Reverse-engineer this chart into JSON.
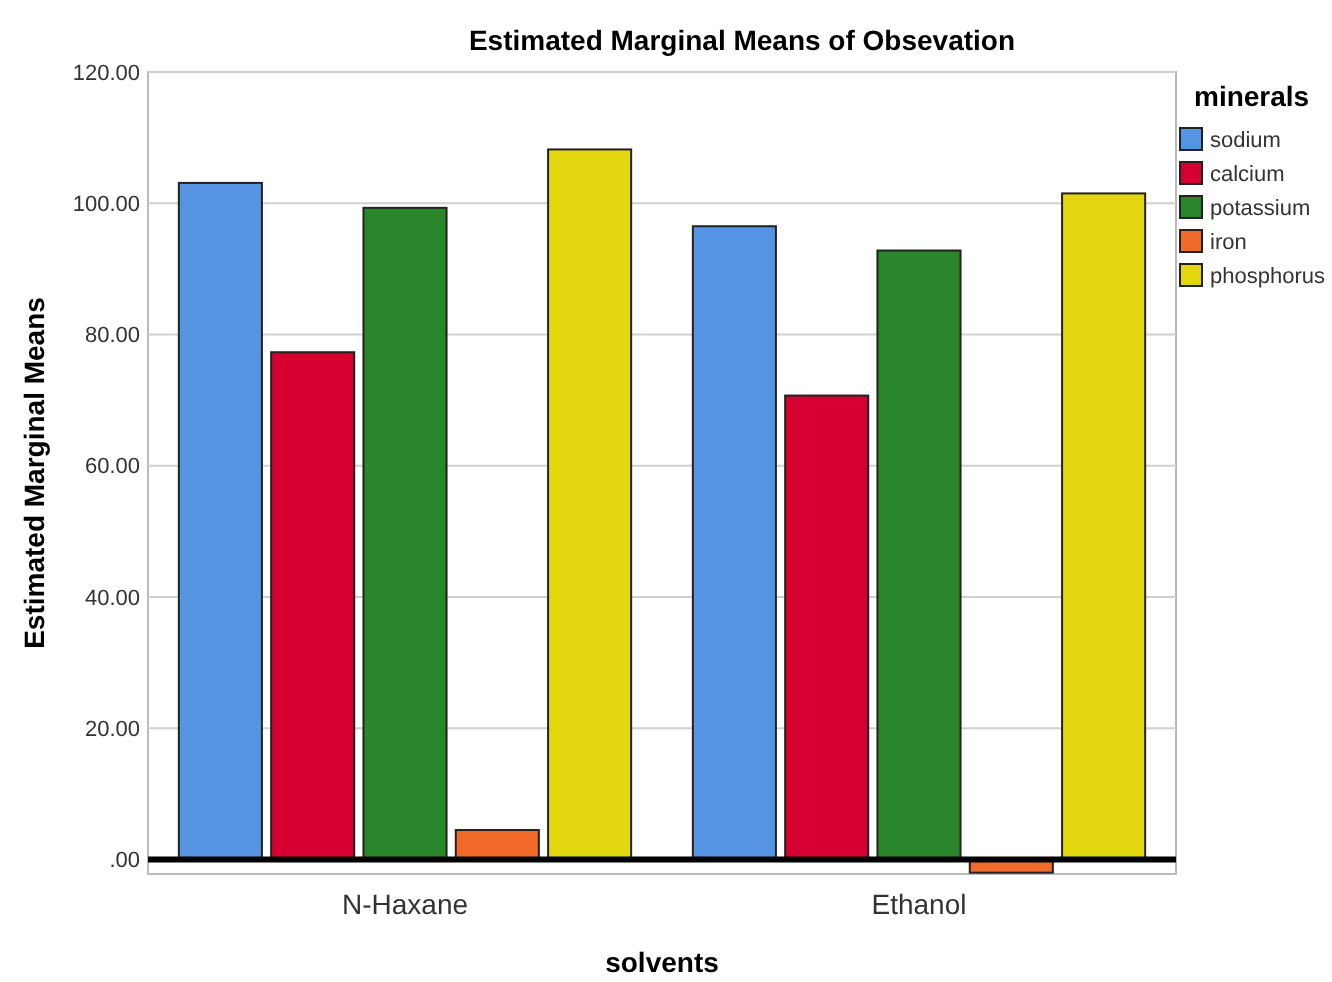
{
  "chart_data": {
    "type": "bar",
    "title": "Estimated Marginal Means of Obsevation",
    "xlabel": "solvents",
    "ylabel": "Estimated Marginal Means",
    "legend_title": "minerals",
    "categories": [
      "N-Haxane",
      "Ethanol"
    ],
    "series": [
      {
        "name": "sodium",
        "color": "#5593e3",
        "values": [
          103.1,
          96.5
        ]
      },
      {
        "name": "calcium",
        "color": "#d60030",
        "values": [
          77.3,
          70.7
        ]
      },
      {
        "name": "potassium",
        "color": "#2a862a",
        "values": [
          99.3,
          92.8
        ]
      },
      {
        "name": "iron",
        "color": "#f26a2a",
        "values": [
          4.5,
          -2.0
        ]
      },
      {
        "name": "phosphorus",
        "color": "#e2d70e",
        "values": [
          108.2,
          101.5
        ]
      }
    ],
    "ylim": [
      -2.2,
      120
    ],
    "yticks": [
      {
        "value": 0,
        "label": ".00"
      },
      {
        "value": 20,
        "label": "20.00"
      },
      {
        "value": 40,
        "label": "40.00"
      },
      {
        "value": 60,
        "label": "60.00"
      },
      {
        "value": 80,
        "label": "80.00"
      },
      {
        "value": 100,
        "label": "100.00"
      },
      {
        "value": 120,
        "label": "120.00"
      }
    ],
    "grid": "y",
    "legend": "right"
  }
}
